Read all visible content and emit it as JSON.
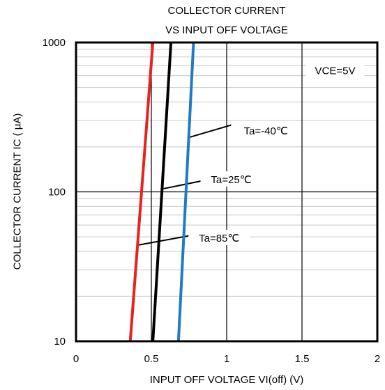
{
  "chart_data": {
    "type": "line",
    "title_lines": [
      "COLLECTOR CURRENT",
      "VS INPUT OFF VOLTAGE"
    ],
    "xlabel": "INPUT OFF VOLTAGE VI(off) (V)",
    "ylabel": "COLLECTOR CURRENT IC ( μA)",
    "xlim": [
      0,
      2
    ],
    "ylim": [
      10,
      1000
    ],
    "yscale": "log",
    "grid": true,
    "x_ticks": [
      "0",
      "0.5",
      "1",
      "1.5",
      "2"
    ],
    "x_tick_values": [
      0,
      0.5,
      1,
      1.5,
      2
    ],
    "y_ticks": [
      "10",
      "100",
      "1000"
    ],
    "y_tick_values": [
      10,
      100,
      1000
    ],
    "condition_label": "VCE=5V",
    "series": [
      {
        "name": "Ta=85℃",
        "color": "#e8231c",
        "x": [
          0.36,
          0.51
        ],
        "y": [
          10,
          1000
        ]
      },
      {
        "name": "Ta=25℃",
        "color": "#000000",
        "x": [
          0.51,
          0.63
        ],
        "y": [
          10,
          1000
        ]
      },
      {
        "name": "Ta=-40℃",
        "color": "#1e7bc4",
        "x": [
          0.68,
          0.78
        ],
        "y": [
          10,
          1000
        ]
      }
    ],
    "annotations": [
      {
        "text": "Ta=-40℃",
        "series": "Ta=-40℃",
        "text_x": 1.26,
        "text_y": 250,
        "line_from": [
          0.74,
          230
        ],
        "line_to": [
          1.03,
          280
        ]
      },
      {
        "text": "Ta=25℃",
        "series": "Ta=25℃",
        "text_x": 1.03,
        "text_y": 118,
        "line_from": [
          0.58,
          105
        ],
        "line_to": [
          0.88,
          121
        ]
      },
      {
        "text": "Ta=85℃",
        "series": "Ta=85℃",
        "text_x": 0.95,
        "text_y": 48,
        "line_from": [
          0.41,
          44
        ],
        "line_to": [
          0.85,
          53
        ]
      }
    ]
  }
}
